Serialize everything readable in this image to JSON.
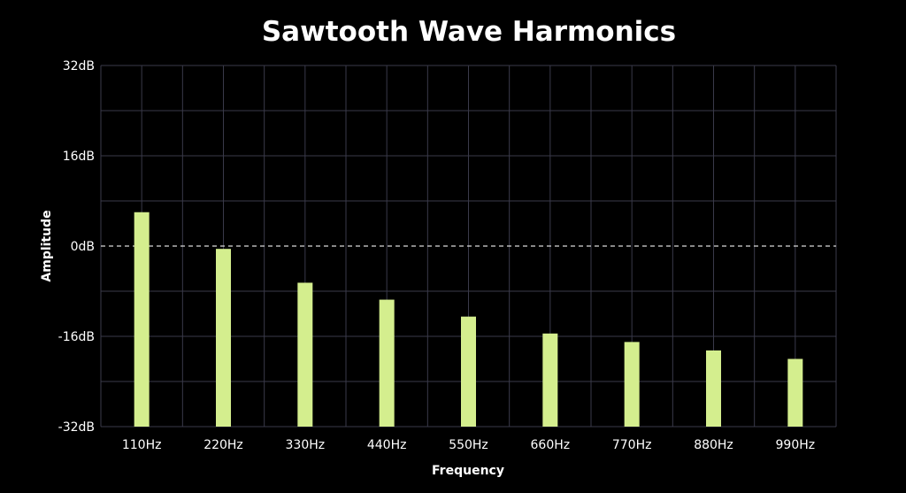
{
  "chart_data": {
    "type": "bar",
    "title": "Sawtooth Wave Harmonics",
    "xlabel": "Frequency",
    "ylabel": "Amplitude",
    "categories": [
      "110Hz",
      "220Hz",
      "330Hz",
      "440Hz",
      "550Hz",
      "660Hz",
      "770Hz",
      "880Hz",
      "990Hz"
    ],
    "values": [
      6.0,
      -0.5,
      -6.5,
      -9.5,
      -12.5,
      -15.5,
      -17.0,
      -18.5,
      -20.0
    ],
    "ylim": [
      -32,
      32
    ],
    "yticks": [
      -32,
      -16,
      0,
      16,
      32
    ],
    "ytick_labels": [
      "-32dB",
      "-16dB",
      "0dB",
      "16dB",
      "32dB"
    ],
    "zero_line": "dashed",
    "grid": true,
    "legend": "none"
  },
  "colors": {
    "background": "#000000",
    "bar": "#d4ee8e",
    "grid": "#3a3a4a",
    "text": "#ffffff"
  }
}
